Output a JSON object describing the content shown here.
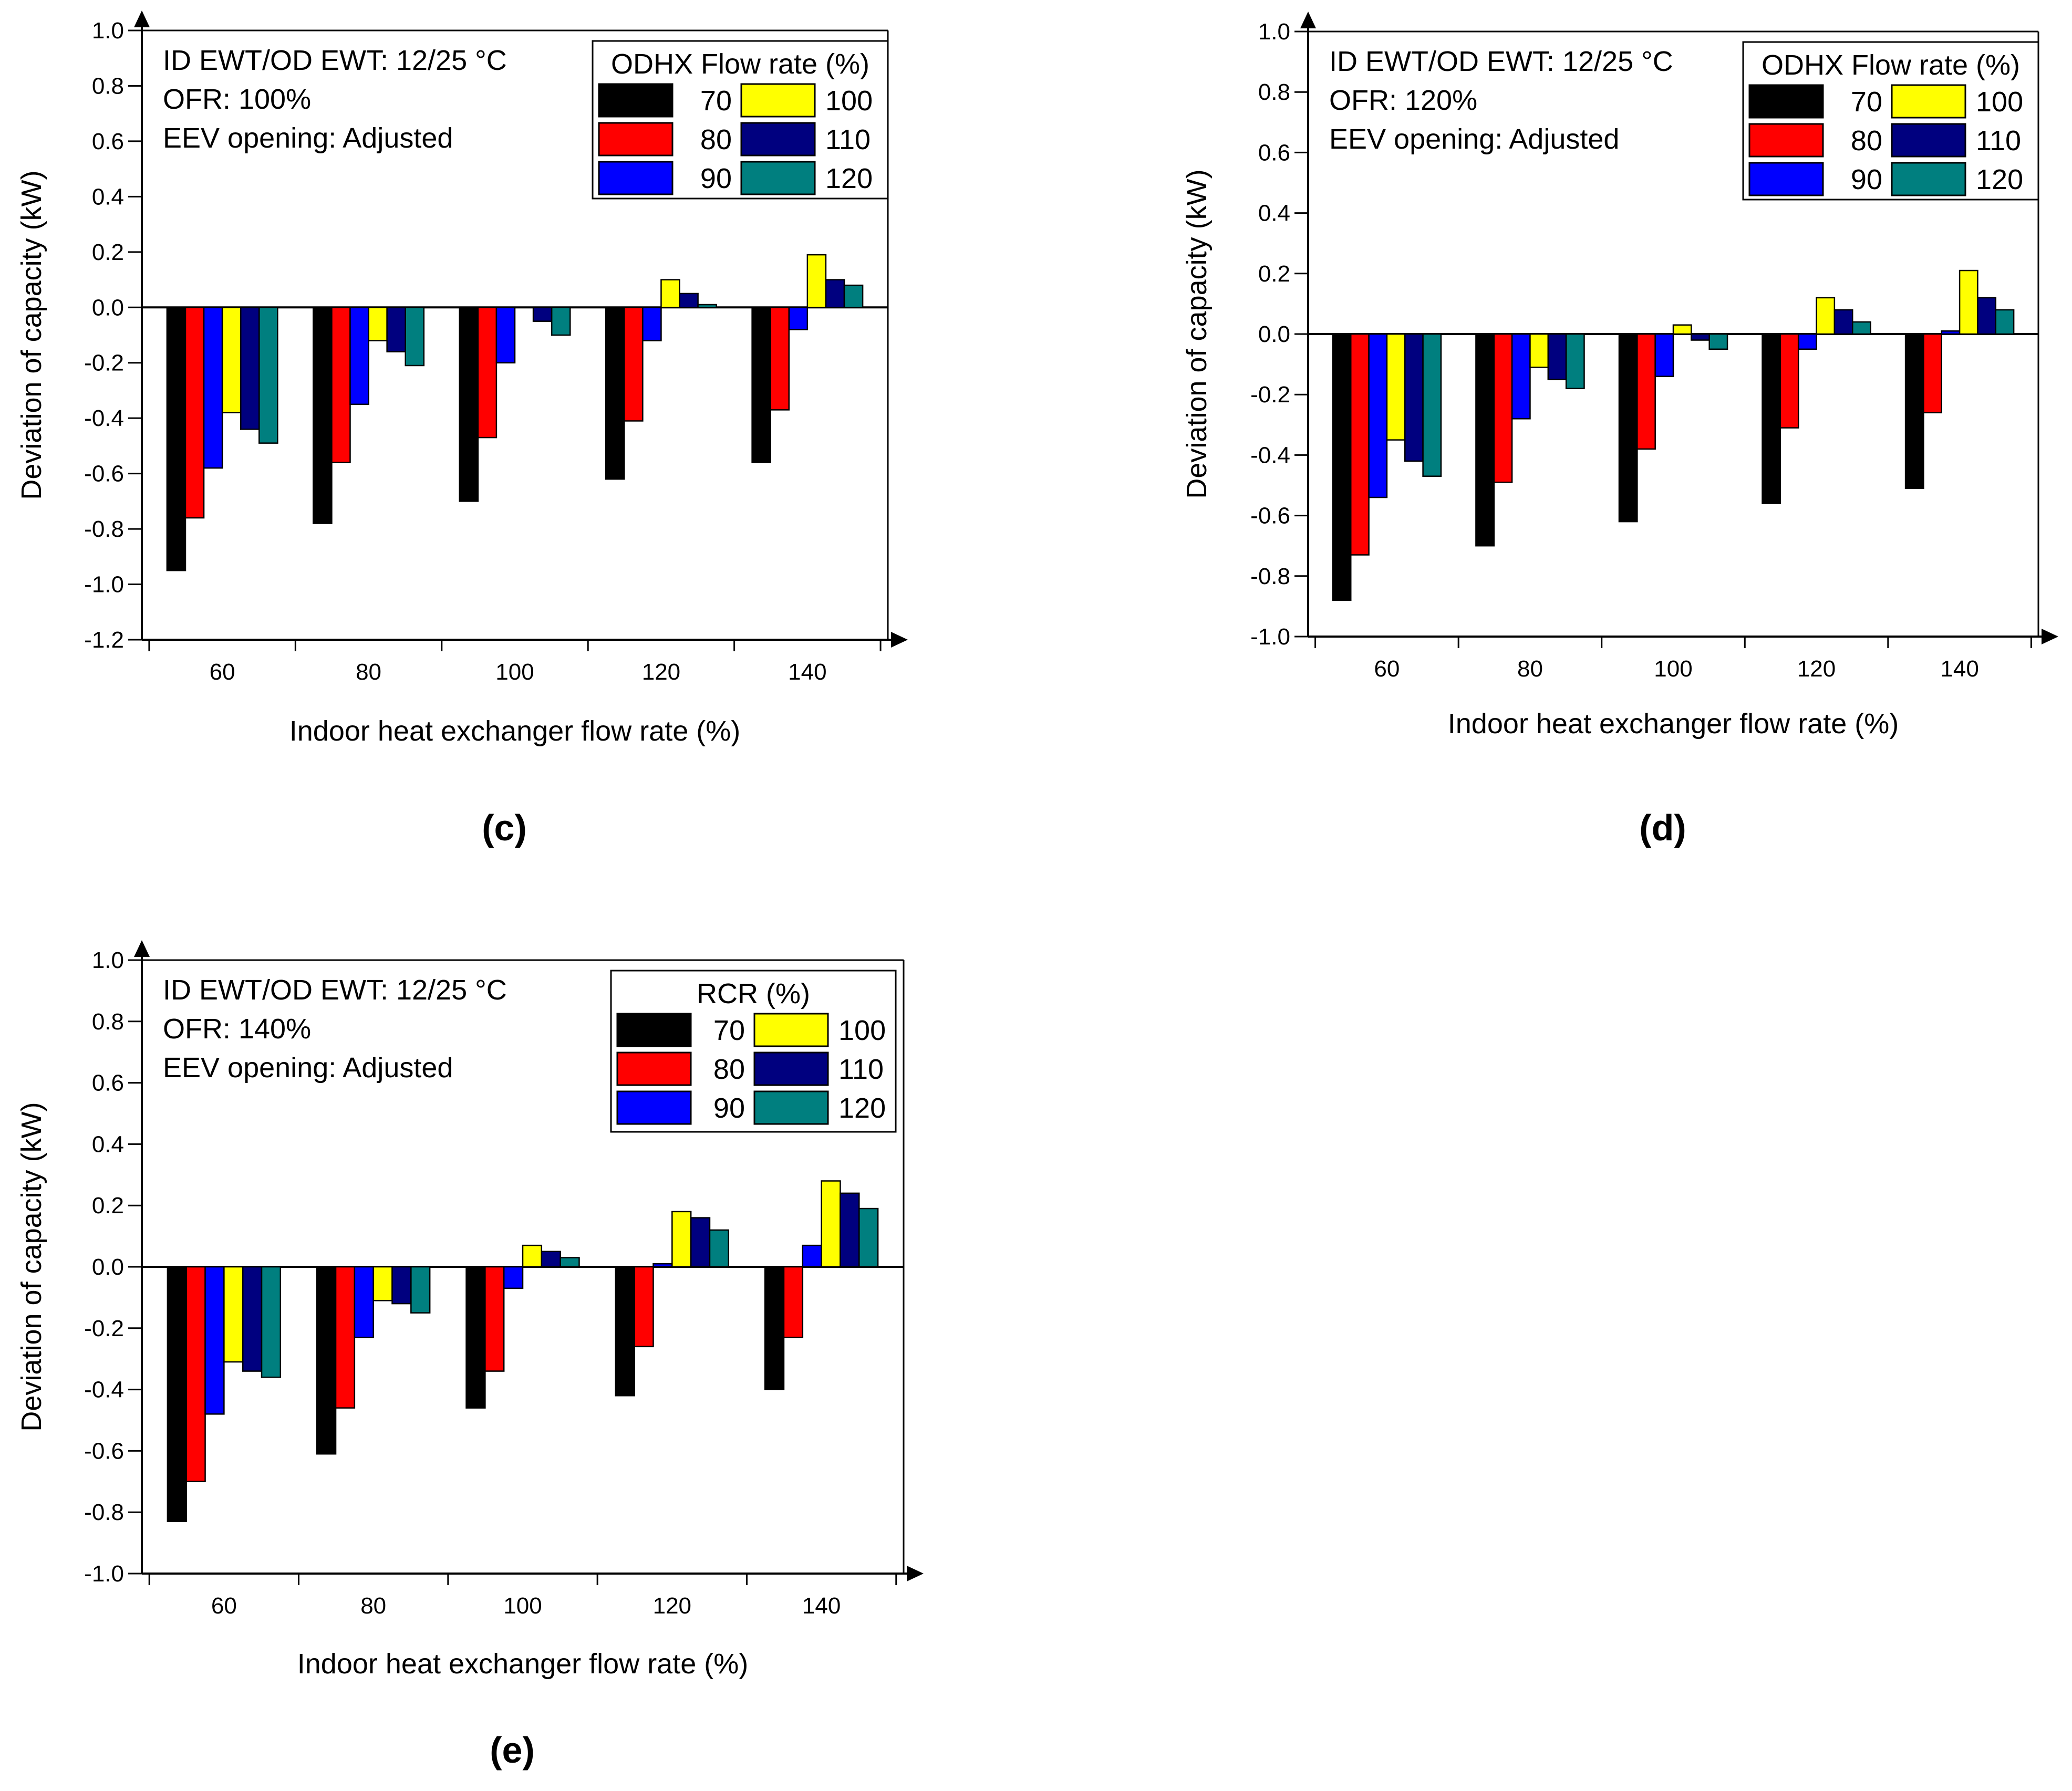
{
  "legend_colors": {
    "70": "#000000",
    "80": "#ff0000",
    "90": "#0000ff",
    "100": "#ffff00",
    "110": "#00007f",
    "120": "#007f7f"
  },
  "chart_data": [
    {
      "id": "c",
      "panel_label": "(c)",
      "type": "bar",
      "xlabel": "Indoor heat exchanger flow rate (%)",
      "ylabel": "Deviation of capacity (kW)",
      "ylim": [
        -1.2,
        1.0
      ],
      "yticks": [
        "1.0",
        "0.8",
        "0.6",
        "0.4",
        "0.2",
        "0.0",
        "-0.2",
        "-0.4",
        "-0.6",
        "-0.8",
        "-1.0",
        "-1.2"
      ],
      "categories": [
        "60",
        "80",
        "100",
        "120",
        "140"
      ],
      "annotation": [
        "ID EWT/OD EWT: 12/25 °C",
        "OFR: 100%",
        "EEV opening: Adjusted"
      ],
      "legend_title": "ODHX Flow rate (%)",
      "legend_position": "top-right",
      "series": [
        {
          "name": "70",
          "values": [
            -0.95,
            -0.78,
            -0.7,
            -0.62,
            -0.56
          ]
        },
        {
          "name": "80",
          "values": [
            -0.76,
            -0.56,
            -0.47,
            -0.41,
            -0.37
          ]
        },
        {
          "name": "90",
          "values": [
            -0.58,
            -0.35,
            -0.2,
            -0.12,
            -0.08
          ]
        },
        {
          "name": "100",
          "values": [
            -0.38,
            -0.12,
            0.0,
            0.1,
            0.19
          ]
        },
        {
          "name": "110",
          "values": [
            -0.44,
            -0.16,
            -0.05,
            0.05,
            0.1
          ]
        },
        {
          "name": "120",
          "values": [
            -0.49,
            -0.21,
            -0.1,
            0.01,
            0.08
          ]
        }
      ]
    },
    {
      "id": "d",
      "panel_label": "(d)",
      "type": "bar",
      "xlabel": "Indoor heat exchanger flow rate (%)",
      "ylabel": "Deviation of capacity (kW)",
      "ylim": [
        -1.0,
        1.0
      ],
      "yticks": [
        "1.0",
        "0.8",
        "0.6",
        "0.4",
        "0.2",
        "0.0",
        "-0.2",
        "-0.4",
        "-0.6",
        "-0.8",
        "-1.0"
      ],
      "categories": [
        "60",
        "80",
        "100",
        "120",
        "140"
      ],
      "annotation": [
        "ID EWT/OD EWT: 12/25 °C",
        "OFR: 120%",
        "EEV opening: Adjusted"
      ],
      "legend_title": "ODHX Flow rate (%)",
      "legend_position": "top-right",
      "series": [
        {
          "name": "70",
          "values": [
            -0.88,
            -0.7,
            -0.62,
            -0.56,
            -0.51
          ]
        },
        {
          "name": "80",
          "values": [
            -0.73,
            -0.49,
            -0.38,
            -0.31,
            -0.26
          ]
        },
        {
          "name": "90",
          "values": [
            -0.54,
            -0.28,
            -0.14,
            -0.05,
            0.01
          ]
        },
        {
          "name": "100",
          "values": [
            -0.35,
            -0.11,
            0.03,
            0.12,
            0.21
          ]
        },
        {
          "name": "110",
          "values": [
            -0.42,
            -0.15,
            -0.02,
            0.08,
            0.12
          ]
        },
        {
          "name": "120",
          "values": [
            -0.47,
            -0.18,
            -0.05,
            0.04,
            0.08
          ]
        }
      ]
    },
    {
      "id": "e",
      "panel_label": "(e)",
      "type": "bar",
      "xlabel": "Indoor heat exchanger flow rate (%)",
      "ylabel": "Deviation of capacity (kW)",
      "ylim": [
        -1.0,
        1.0
      ],
      "yticks": [
        "1.0",
        "0.8",
        "0.6",
        "0.4",
        "0.2",
        "0.0",
        "-0.2",
        "-0.4",
        "-0.6",
        "-0.8",
        "-1.0"
      ],
      "categories": [
        "60",
        "80",
        "100",
        "120",
        "140"
      ],
      "annotation": [
        "ID EWT/OD EWT: 12/25 °C",
        "OFR: 140%",
        "EEV opening: Adjusted"
      ],
      "legend_title": "RCR (%)",
      "legend_position": "top-right",
      "series": [
        {
          "name": "70",
          "values": [
            -0.83,
            -0.61,
            -0.46,
            -0.42,
            -0.4
          ]
        },
        {
          "name": "80",
          "values": [
            -0.7,
            -0.46,
            -0.34,
            -0.26,
            -0.23
          ]
        },
        {
          "name": "90",
          "values": [
            -0.48,
            -0.23,
            -0.07,
            0.01,
            0.07
          ]
        },
        {
          "name": "100",
          "values": [
            -0.31,
            -0.11,
            0.07,
            0.18,
            0.28
          ]
        },
        {
          "name": "110",
          "values": [
            -0.34,
            -0.12,
            0.05,
            0.16,
            0.24
          ]
        },
        {
          "name": "120",
          "values": [
            -0.36,
            -0.15,
            0.03,
            0.12,
            0.19
          ]
        }
      ]
    }
  ]
}
